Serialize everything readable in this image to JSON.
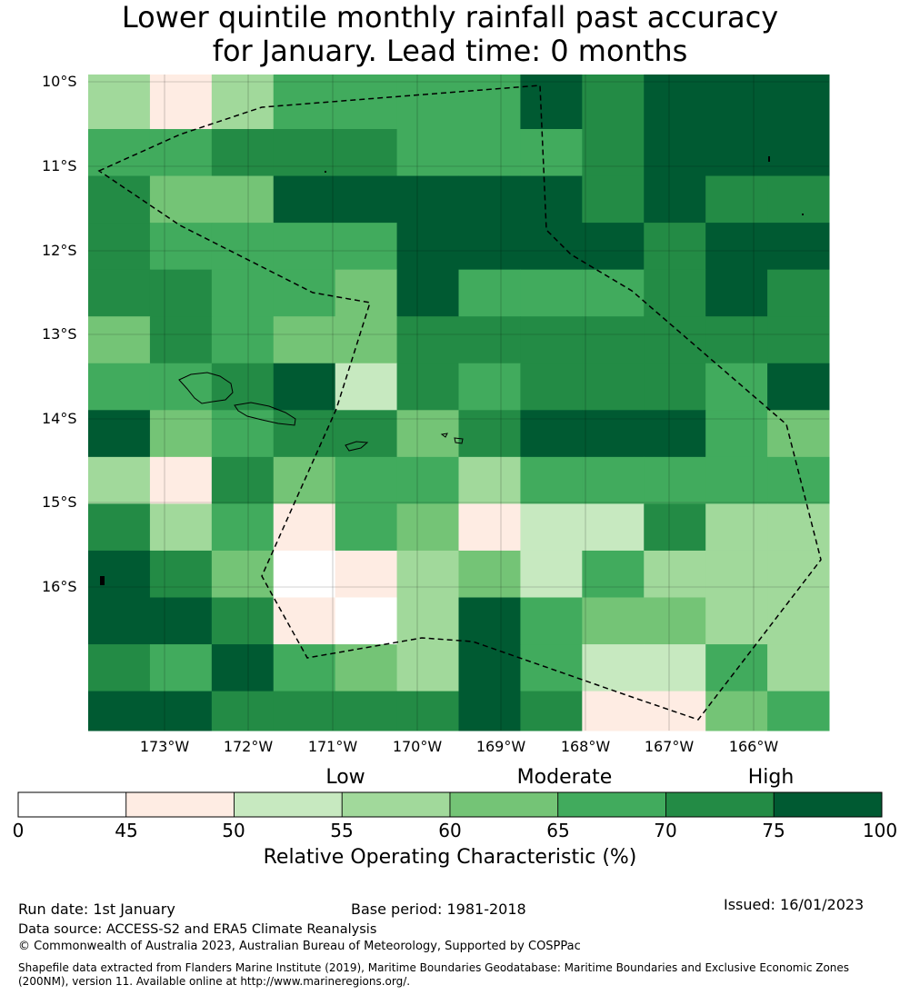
{
  "title": {
    "line1": "Lower quintile monthly rainfall past accuracy",
    "line2": "for January. Lead time: 0 months"
  },
  "map": {
    "lat_labels": [
      "10°S",
      "11°S",
      "12°S",
      "13°S",
      "14°S",
      "15°S",
      "16°S"
    ],
    "lon_labels": [
      "173°W",
      "172°W",
      "171°W",
      "170°W",
      "169°W",
      "168°W",
      "167°W",
      "166°W"
    ],
    "grid_rows": [
      [
        3,
        1,
        3,
        5,
        5,
        5,
        5,
        7,
        6,
        7,
        7,
        7
      ],
      [
        5,
        5,
        6,
        6,
        6,
        5,
        5,
        5,
        6,
        7,
        7,
        7
      ],
      [
        6,
        4,
        4,
        7,
        7,
        7,
        7,
        7,
        6,
        7,
        6,
        6
      ],
      [
        6,
        5,
        5,
        5,
        5,
        7,
        7,
        7,
        7,
        6,
        7,
        7
      ],
      [
        6,
        6,
        5,
        5,
        4,
        7,
        5,
        5,
        5,
        6,
        7,
        6
      ],
      [
        4,
        6,
        5,
        4,
        4,
        6,
        6,
        6,
        6,
        6,
        6,
        6
      ],
      [
        5,
        5,
        6,
        7,
        2,
        6,
        5,
        6,
        6,
        6,
        5,
        7
      ],
      [
        7,
        4,
        5,
        6,
        6,
        4,
        6,
        7,
        7,
        7,
        5,
        4
      ],
      [
        3,
        1,
        6,
        4,
        5,
        5,
        3,
        5,
        5,
        5,
        5,
        5
      ],
      [
        6,
        3,
        5,
        1,
        5,
        4,
        1,
        2,
        2,
        6,
        3,
        3
      ],
      [
        7,
        6,
        4,
        0,
        1,
        3,
        4,
        2,
        5,
        3,
        3,
        3
      ],
      [
        7,
        7,
        6,
        1,
        0,
        3,
        7,
        5,
        4,
        4,
        3,
        3
      ],
      [
        6,
        5,
        7,
        5,
        4,
        3,
        7,
        5,
        2,
        2,
        5,
        3
      ],
      [
        7,
        7,
        6,
        6,
        6,
        6,
        7,
        6,
        1,
        1,
        4,
        5
      ]
    ]
  },
  "colorbar": {
    "colors": [
      "#ffffff",
      "#feece3",
      "#c7e9c0",
      "#a1d99b",
      "#74c476",
      "#41ab5d",
      "#238b45",
      "#005a32"
    ],
    "ticks": [
      "0",
      "45",
      "50",
      "55",
      "60",
      "65",
      "70",
      "75",
      "100"
    ],
    "categories": [
      "Low",
      "Moderate",
      "High"
    ],
    "label": "Relative Operating Characteristic (%)"
  },
  "footer": {
    "run_date": "Run date: 1st January",
    "base_period": "Base period: 1981-2018",
    "issued": "Issued: 16/01/2023",
    "data_source": "Data source: ACCESS-S2 and ERA5 Climate Reanalysis",
    "copyright": "© Commonwealth of Australia 2023, Australian Bureau of Meteorology, Supported by COSPPac",
    "shapefile_line1": "Shapefile data extracted from Flanders Marine Institute (2019), Maritime Boundaries Geodatabase: Maritime Boundaries and Exclusive Economic Zones",
    "shapefile_line2": "(200NM), version 11. Available online at http://www.marineregions.org/."
  }
}
